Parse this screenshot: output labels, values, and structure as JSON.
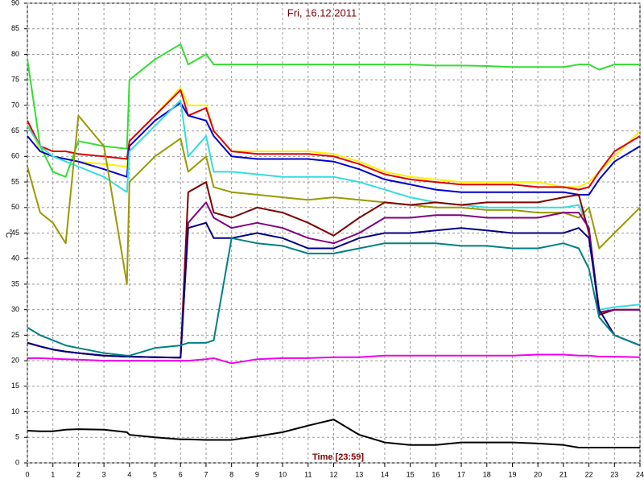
{
  "chart_data": {
    "type": "line",
    "title": "Fri, 16.12.2011",
    "xlabel": "Time [23:59]",
    "ylabel": "°C",
    "x": [
      0,
      0.5,
      1,
      1.5,
      2,
      3,
      3.9,
      4,
      5,
      6,
      6.3,
      7,
      7.3,
      8,
      9,
      10,
      11,
      12,
      13,
      14,
      15,
      16,
      17,
      18,
      19,
      20,
      21,
      21.6,
      22,
      22.4,
      23,
      24
    ],
    "xlim": [
      0,
      24
    ],
    "xticks": [
      0,
      1,
      2,
      3,
      4,
      5,
      6,
      7,
      8,
      9,
      10,
      11,
      12,
      13,
      14,
      15,
      16,
      17,
      18,
      19,
      20,
      21,
      22,
      23,
      24
    ],
    "ylim": [
      0,
      90
    ],
    "yticks": [
      0,
      5,
      10,
      15,
      20,
      25,
      30,
      35,
      40,
      45,
      50,
      55,
      60,
      65,
      70,
      75,
      80,
      85,
      90
    ],
    "grid": true,
    "series": [
      {
        "color": "#33dd33",
        "values": [
          79,
          62,
          57,
          56,
          63,
          62,
          61.5,
          75,
          79,
          82,
          78,
          80,
          78,
          78,
          78,
          78,
          78,
          78,
          78,
          78,
          78,
          77.8,
          77.8,
          77.7,
          77.5,
          77.5,
          77.5,
          78,
          78,
          77,
          78,
          78
        ]
      },
      {
        "color": "#ffee00",
        "values": [
          67,
          61,
          60,
          59.5,
          59,
          58.5,
          58,
          63,
          68,
          73.5,
          70,
          70,
          65,
          61,
          61,
          61,
          61,
          60.5,
          59,
          57,
          56,
          55.5,
          55,
          55,
          55,
          55,
          54,
          54,
          55,
          57,
          60,
          65
        ]
      },
      {
        "color": "#dd0000",
        "values": [
          67,
          62,
          61,
          61,
          60.5,
          60,
          59.5,
          63,
          68,
          73,
          68,
          69.5,
          65,
          61,
          60.5,
          60.5,
          60.5,
          60,
          58.5,
          56.5,
          55.5,
          55,
          54.5,
          54.5,
          54.5,
          54,
          54,
          53.5,
          54,
          57,
          61,
          64
        ]
      },
      {
        "color": "#0000cc",
        "values": [
          64,
          61,
          60,
          59.5,
          59,
          57.5,
          56,
          62,
          67,
          70.5,
          68,
          67,
          64,
          60,
          59.5,
          59.5,
          59.5,
          59,
          57.5,
          55.5,
          54.5,
          53.5,
          53,
          53,
          53,
          53,
          53,
          52.5,
          52.5,
          55.5,
          59,
          62
        ]
      },
      {
        "color": "#33dddd",
        "values": [
          66,
          62,
          60,
          59,
          58,
          56,
          53,
          61,
          66,
          71,
          60,
          64,
          57,
          57,
          56.5,
          56,
          56,
          56,
          55,
          53.5,
          52,
          51,
          50.5,
          50,
          50,
          50,
          50,
          50.5,
          46,
          30,
          30.5,
          31
        ]
      },
      {
        "color": "#999900",
        "values": [
          58,
          49,
          47,
          43,
          68,
          62,
          35,
          55,
          60,
          63.5,
          57,
          60,
          54,
          53,
          52.5,
          52,
          51.5,
          52,
          51.5,
          51,
          50.5,
          50,
          50,
          49.5,
          49.5,
          49,
          49,
          48,
          50,
          42,
          45,
          50
        ]
      },
      {
        "color": "#800000",
        "values": [
          23.5,
          22.8,
          22.2,
          21.8,
          21.5,
          21,
          20.8,
          20.8,
          20.7,
          20.6,
          53,
          55,
          49,
          48,
          50,
          49,
          47,
          44.5,
          48,
          51,
          50.5,
          51,
          50.5,
          51,
          51,
          51,
          52,
          52.5,
          45,
          29,
          30,
          30
        ]
      },
      {
        "color": "#800080",
        "values": [
          23.5,
          22.8,
          22.2,
          21.8,
          21.5,
          21,
          20.8,
          20.8,
          20.7,
          20.6,
          47,
          51,
          48,
          46,
          47,
          46,
          44,
          43,
          45,
          48,
          48,
          48.5,
          48.5,
          48,
          48,
          48,
          49,
          49,
          46,
          29.5,
          30,
          30
        ]
      },
      {
        "color": "#000080",
        "values": [
          23.5,
          22.8,
          22.2,
          21.8,
          21.5,
          21,
          20.8,
          20.8,
          20.7,
          20.6,
          46,
          47,
          44,
          44,
          45,
          44,
          42,
          42,
          44,
          45,
          45,
          45.5,
          46,
          45.5,
          45,
          45,
          45,
          46,
          44,
          30,
          25,
          23
        ]
      },
      {
        "color": "#008080",
        "values": [
          26.5,
          25,
          24,
          23,
          22.5,
          21.5,
          21,
          21,
          22.5,
          23,
          23.5,
          23.5,
          24,
          44,
          43,
          42.5,
          41,
          41,
          42,
          43,
          43,
          43,
          42.5,
          42.5,
          42,
          42,
          43,
          42,
          38,
          28.5,
          25,
          23
        ]
      },
      {
        "color": "#ee00ee",
        "values": [
          20.5,
          20.5,
          20.4,
          20.3,
          20.2,
          20,
          20,
          20,
          20,
          20,
          20,
          20.3,
          20.5,
          19.5,
          20.3,
          20.5,
          20.5,
          20.7,
          20.7,
          21,
          21,
          21,
          21,
          21,
          21,
          21.2,
          21.2,
          21,
          21,
          20.8,
          20.8,
          20.7
        ]
      },
      {
        "color": "#000000",
        "values": [
          6.3,
          6.2,
          6.2,
          6.5,
          6.6,
          6.5,
          6,
          5.5,
          5,
          4.6,
          4.6,
          4.5,
          4.5,
          4.5,
          5.2,
          6,
          7.3,
          8.5,
          5.5,
          4,
          3.5,
          3.5,
          4,
          4,
          4,
          3.8,
          3.5,
          3,
          3,
          3,
          3,
          3
        ]
      }
    ]
  }
}
